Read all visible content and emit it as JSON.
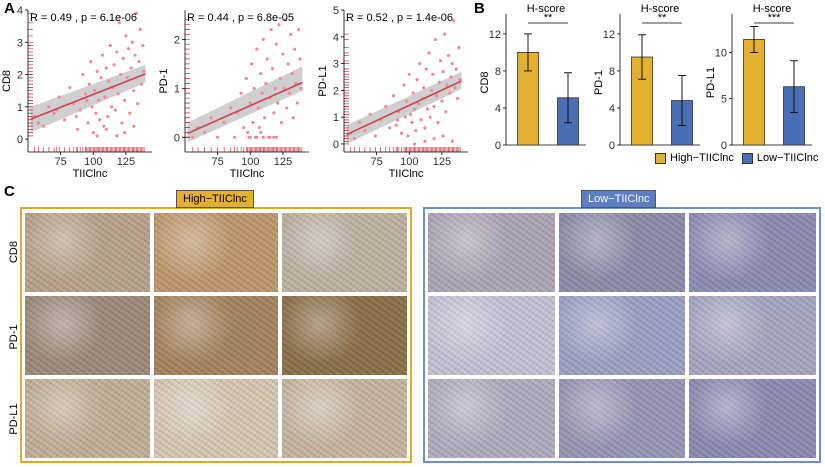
{
  "panels": {
    "a": "A",
    "b": "B",
    "c": "C"
  },
  "colors": {
    "high": "#E4B031",
    "low": "#4A6FB5",
    "scatter_point": "#F08A9A",
    "regression_line": "#D0404F",
    "confidence_band": "#BFBFBF",
    "rug": "#D0404F",
    "high_frame": "#E0A92E",
    "low_frame": "#6D8FCF"
  },
  "chart_data": [
    {
      "type": "scatter",
      "ylabel": "CD8",
      "xlabel": "TIIClnc",
      "stat_label": "R = 0.49 , p = 6.1e-06",
      "xlim": [
        50,
        145
      ],
      "ylim": [
        -0.4,
        4
      ],
      "xticks": [
        75,
        100,
        125
      ],
      "yticks": [
        0,
        1,
        2,
        3,
        4
      ],
      "fit": {
        "x": [
          52,
          140
        ],
        "y": [
          0.62,
          2.02
        ]
      },
      "band": {
        "lower": [
          0.2,
          1.75
        ],
        "upper": [
          1.0,
          2.3
        ]
      },
      "x": [
        55,
        58,
        62,
        66,
        70,
        74,
        78,
        82,
        85,
        88,
        90,
        92,
        94,
        96,
        97,
        98,
        99,
        100,
        101,
        102,
        103,
        104,
        105,
        106,
        107,
        108,
        109,
        110,
        111,
        112,
        113,
        114,
        115,
        116,
        117,
        118,
        119,
        120,
        121,
        122,
        123,
        124,
        125,
        126,
        127,
        128,
        129,
        130,
        131,
        132,
        133,
        134,
        135,
        136,
        137,
        138,
        139,
        103,
        110,
        118,
        124,
        131,
        95,
        87,
        72
      ],
      "y": [
        0.7,
        0.5,
        0.4,
        1.0,
        0.8,
        1.3,
        0.6,
        1.6,
        1.1,
        0.3,
        0.9,
        2.0,
        1.4,
        0.5,
        1.7,
        2.4,
        1.0,
        0.2,
        1.5,
        0.8,
        2.1,
        1.2,
        0.6,
        1.9,
        2.6,
        0.4,
        1.3,
        2.2,
        0.7,
        1.8,
        2.9,
        1.0,
        1.6,
        2.3,
        0.9,
        2.7,
        1.4,
        3.6,
        2.0,
        0.5,
        2.5,
        1.2,
        3.2,
        1.9,
        2.8,
        0.8,
        2.2,
        3.0,
        1.5,
        2.6,
        3.9,
        1.1,
        2.4,
        3.4,
        1.7,
        2.9,
        2.1,
        0.1,
        0.3,
        0.1,
        0.2,
        0.4,
        1.2,
        0.7,
        0.9
      ]
    },
    {
      "type": "scatter",
      "ylabel": "PD-1",
      "xlabel": "TIIClnc",
      "stat_label": "R = 0.44 , p = 6.8e-05",
      "xlim": [
        50,
        145
      ],
      "ylim": [
        -0.3,
        2.6
      ],
      "xticks": [
        75,
        100,
        125
      ],
      "yticks": [
        0,
        1,
        2
      ],
      "fit": {
        "x": [
          52,
          140
        ],
        "y": [
          0.08,
          1.12
        ]
      },
      "band": {
        "lower": [
          -0.1,
          0.95
        ],
        "upper": [
          0.3,
          1.45
        ]
      },
      "x": [
        56,
        60,
        65,
        70,
        75,
        80,
        85,
        88,
        90,
        93,
        95,
        97,
        99,
        100,
        101,
        102,
        103,
        104,
        105,
        106,
        107,
        108,
        109,
        110,
        111,
        112,
        113,
        114,
        115,
        116,
        117,
        118,
        119,
        120,
        121,
        122,
        123,
        124,
        125,
        126,
        127,
        128,
        129,
        130,
        131,
        132,
        133,
        134,
        135,
        136,
        137,
        138,
        139,
        100,
        105,
        110,
        115,
        120,
        98,
        108,
        118
      ],
      "y": [
        0.0,
        0.2,
        0.1,
        0.4,
        0.0,
        0.3,
        0.6,
        0.0,
        0.5,
        0.9,
        0.2,
        1.2,
        0.0,
        0.7,
        1.5,
        0.3,
        1.0,
        0.0,
        1.8,
        0.6,
        0.2,
        1.3,
        0.9,
        2.0,
        0.4,
        1.1,
        1.6,
        0.0,
        0.8,
        2.2,
        1.4,
        0.5,
        1.0,
        1.9,
        0.7,
        2.3,
        1.2,
        0.3,
        1.7,
        1.0,
        2.4,
        0.6,
        1.5,
        0.9,
        2.1,
        1.3,
        0.4,
        1.8,
        1.1,
        0.7,
        2.2,
        1.6,
        1.0,
        0.0,
        0.0,
        0.0,
        0.0,
        0.0,
        0.1,
        0.1,
        0.0
      ]
    },
    {
      "type": "scatter",
      "ylabel": "PD-L1",
      "xlabel": "TIIClnc",
      "stat_label": "R = 0.52 , p = 1.4e-06",
      "xlim": [
        50,
        145
      ],
      "ylim": [
        -0.3,
        5
      ],
      "xticks": [
        75,
        100,
        125
      ],
      "yticks": [
        0,
        1,
        2,
        3,
        4,
        5
      ],
      "fit": {
        "x": [
          52,
          140
        ],
        "y": [
          0.35,
          2.35
        ]
      },
      "band": {
        "lower": [
          0.0,
          2.05
        ],
        "upper": [
          0.7,
          2.7
        ]
      },
      "x": [
        55,
        58,
        62,
        66,
        70,
        74,
        78,
        82,
        85,
        88,
        90,
        92,
        94,
        96,
        97,
        98,
        99,
        100,
        101,
        102,
        103,
        104,
        105,
        106,
        107,
        108,
        109,
        110,
        111,
        112,
        113,
        114,
        115,
        116,
        117,
        118,
        119,
        120,
        121,
        122,
        123,
        124,
        125,
        126,
        127,
        128,
        129,
        130,
        131,
        132,
        133,
        134,
        135,
        136,
        137,
        138,
        139,
        104,
        112,
        119,
        126,
        133,
        91
      ],
      "y": [
        0.4,
        0.2,
        0.8,
        0.5,
        1.1,
        0.3,
        0.9,
        1.4,
        0.6,
        1.8,
        0.7,
        1.2,
        0.4,
        2.2,
        1.0,
        1.6,
        0.3,
        2.6,
        1.1,
        0.8,
        1.9,
        1.3,
        0.5,
        2.4,
        1.5,
        3.0,
        0.9,
        1.7,
        2.1,
        0.6,
        2.8,
        1.3,
        3.4,
        1.0,
        2.0,
        2.6,
        1.4,
        3.9,
        1.8,
        0.8,
        2.3,
        3.1,
        1.6,
        2.7,
        4.1,
        1.2,
        2.2,
        3.3,
        1.9,
        2.5,
        3.0,
        4.6,
        2.1,
        2.8,
        1.7,
        3.6,
        2.4,
        0.0,
        0.1,
        0.2,
        0.3,
        0.1,
        0.9
      ]
    },
    {
      "type": "bar",
      "title": "H-score",
      "ylabel": "CD8",
      "categories": [
        "High-TIIClnc",
        "Low-TIIClnc"
      ],
      "values": [
        10.0,
        5.1
      ],
      "errors": [
        2.0,
        2.7
      ],
      "ylim": [
        0,
        13.5
      ],
      "yticks": [
        0,
        4,
        8,
        12
      ],
      "significance": "**"
    },
    {
      "type": "bar",
      "title": "H-score",
      "ylabel": "PD-1",
      "categories": [
        "High-TIIClnc",
        "Low-TIIClnc"
      ],
      "values": [
        9.5,
        4.8
      ],
      "errors": [
        2.4,
        2.7
      ],
      "ylim": [
        0,
        13.5
      ],
      "yticks": [
        0,
        4,
        8,
        12
      ],
      "significance": "**"
    },
    {
      "type": "bar",
      "title": "H-score",
      "ylabel": "PD-L1",
      "categories": [
        "High-TIIClnc",
        "Low-TIIClnc"
      ],
      "values": [
        11.4,
        6.3
      ],
      "errors": [
        1.4,
        2.8
      ],
      "ylim": [
        0,
        13.5
      ],
      "yticks": [
        0,
        5,
        10
      ],
      "significance": "***"
    }
  ],
  "legend": {
    "high_label": "High−TIIClnc",
    "low_label": "Low−TIIClnc"
  },
  "ihc": {
    "high_tag": "High−TIIClnc",
    "low_tag": "Low−TIIClnc",
    "rows": [
      "CD8",
      "PD-1",
      "PD-L1"
    ],
    "high_tiles": [
      "#B9A58C",
      "#C19A6E",
      "#BFB4A2",
      "#9E8C7A",
      "#A8865E",
      "#8E7249",
      "#C4B199",
      "#D8C9B4",
      "#C9B9A2"
    ],
    "low_tiles": [
      "#AFA8B6",
      "#8E8DA9",
      "#8E8FB5",
      "#C5C5D6",
      "#9FA3C5",
      "#A8A8C2",
      "#B2AFC0",
      "#9A98B5",
      "#8C8DB3"
    ]
  }
}
